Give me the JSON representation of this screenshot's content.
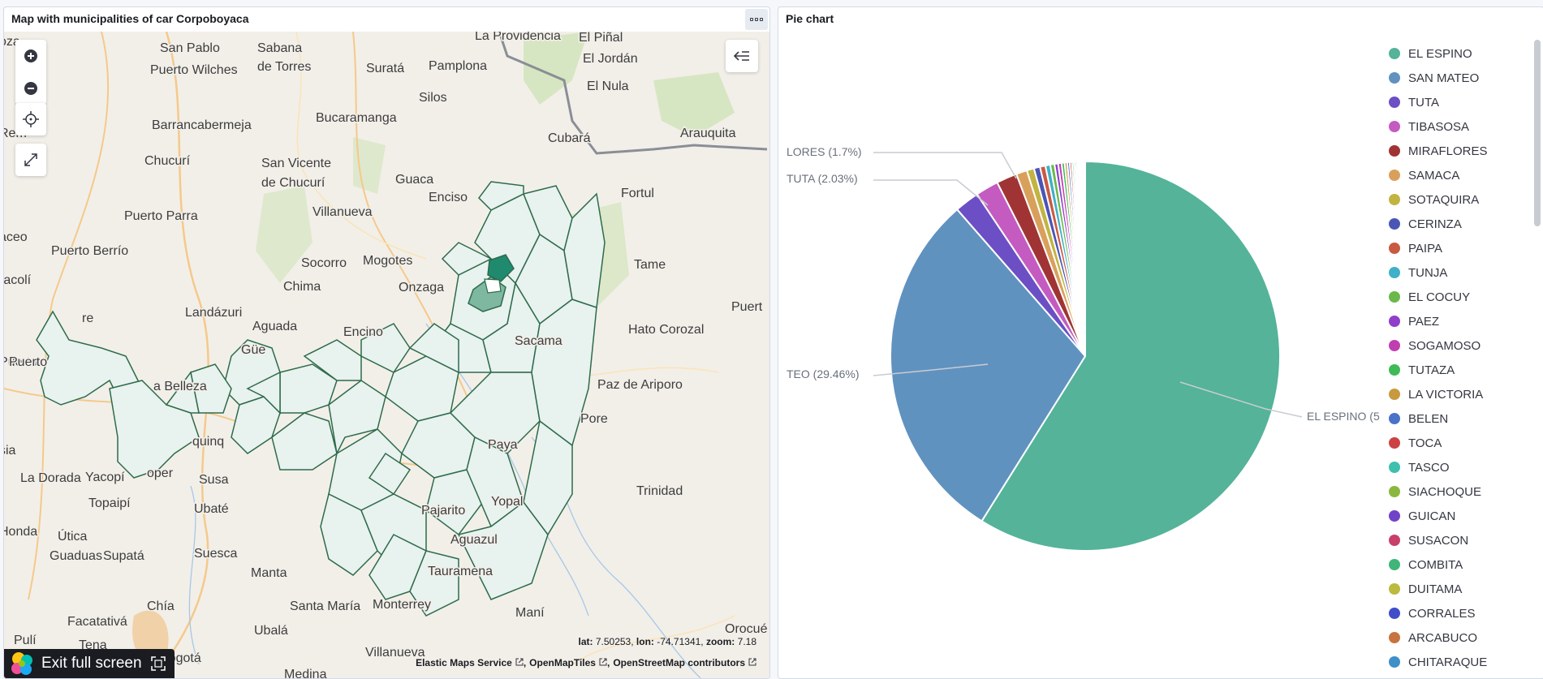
{
  "map_panel": {
    "title": "Map with municipalities of car Corpoboyaca",
    "coords": {
      "lat_label": "lat:",
      "lat": "7.50253",
      "lon_label": "lon:",
      "lon": "-74.71341",
      "zoom_label": "zoom:",
      "zoom": "7.18"
    },
    "attribution": [
      "Elastic Maps Service",
      "OpenMapTiles",
      "OpenStreetMap contributors"
    ],
    "exit_fullscreen": "Exit full screen",
    "places": [
      "San Pablo",
      "Sabana",
      "de Torres",
      "Puerto Wilches",
      "Suratá",
      "Pamplona",
      "La Providencia",
      "El Piñal",
      "El Jordán",
      "El Nula",
      "Silos",
      "Barrancabermeja",
      "Bucaramanga",
      "Cubará",
      "Arauquita",
      "Rem",
      "Chucurí",
      "San Vicente",
      "de Chucurí",
      "Guaca",
      "Fortul",
      "Enciso",
      "Villanueva",
      "Puerto Parra",
      "aceo",
      "Puerto Berrío",
      "Socorro",
      "Mogotes",
      "Tame",
      "racolí",
      "Chima",
      "Onzaga",
      "Landázuri",
      "Aguada",
      "Puert",
      "Hato Corozal",
      "Puerto",
      "re",
      "Encino",
      "Sacama",
      "Güe",
      "Puerto",
      "a Belleza",
      "Paz de Ariporo",
      "Pore",
      "quinq",
      "sia",
      "Paya",
      "La Dorada",
      "Yacopí",
      "oper",
      "Susa",
      "Trinidad",
      "Topaipí",
      "Ubaté",
      "Yopal",
      "Honda",
      "Pajarito",
      "Útica",
      "Aguazul",
      "Guaduas",
      "Supatá",
      "Suesca",
      "Manta",
      "Tauramena",
      "Chía",
      "Santa María",
      "Monterrey",
      "Maní",
      "Facatativá",
      "Orocué",
      "Pulí",
      "Tena",
      "Ubalá",
      "Bogotá",
      "Villanueva",
      "Medina",
      "oza"
    ]
  },
  "pie_panel": {
    "title": "Pie chart",
    "callouts": [
      "LORES (1.7%)",
      "TUTA (2.03%)",
      "TEO (29.46%)",
      "EL ESPINO (5"
    ]
  },
  "chart_data": {
    "type": "pie",
    "title": "Pie chart",
    "series": [
      {
        "name": "EL ESPINO",
        "value": 58.5,
        "color": "#54b399"
      },
      {
        "name": "SAN MATEO",
        "value": 29.46,
        "color": "#6092c0"
      },
      {
        "name": "TUTA",
        "value": 2.03,
        "color": "#6c4fc4"
      },
      {
        "name": "TIBASOSA",
        "value": 1.9,
        "color": "#c45bc1"
      },
      {
        "name": "MIRAFLORES",
        "value": 1.7,
        "color": "#a03434"
      },
      {
        "name": "SAMACA",
        "value": 0.9,
        "color": "#d9a05c"
      },
      {
        "name": "SOTAQUIRA",
        "value": 0.6,
        "color": "#c2b441"
      },
      {
        "name": "CERINZA",
        "value": 0.5,
        "color": "#4b55b5"
      },
      {
        "name": "PAIPA",
        "value": 0.45,
        "color": "#c85a42"
      },
      {
        "name": "TUNJA",
        "value": 0.4,
        "color": "#3fb0c7"
      },
      {
        "name": "EL COCUY",
        "value": 0.35,
        "color": "#6ab84b"
      },
      {
        "name": "PAEZ",
        "value": 0.3,
        "color": "#8f3fc9"
      },
      {
        "name": "SOGAMOSO",
        "value": 0.28,
        "color": "#c03fb0"
      },
      {
        "name": "TUTAZA",
        "value": 0.25,
        "color": "#3fba58"
      },
      {
        "name": "LA VICTORIA",
        "value": 0.22,
        "color": "#c89a3f"
      },
      {
        "name": "BELEN",
        "value": 0.2,
        "color": "#4a72c8"
      },
      {
        "name": "TOCA",
        "value": 0.18,
        "color": "#cc4242"
      },
      {
        "name": "TASCO",
        "value": 0.16,
        "color": "#3fbfae"
      },
      {
        "name": "SIACHOQUE",
        "value": 0.15,
        "color": "#8ab83f"
      },
      {
        "name": "GUICAN",
        "value": 0.14,
        "color": "#7043c8"
      },
      {
        "name": "SUSACON",
        "value": 0.13,
        "color": "#c83f6a"
      },
      {
        "name": "COMBITA",
        "value": 0.12,
        "color": "#3fb57a"
      },
      {
        "name": "DUITAMA",
        "value": 0.11,
        "color": "#bcba3f"
      },
      {
        "name": "CORRALES",
        "value": 0.1,
        "color": "#3f4ec8"
      },
      {
        "name": "ARCABUCO",
        "value": 0.09,
        "color": "#c8733f"
      },
      {
        "name": "CHITARAQUE",
        "value": 0.08,
        "color": "#3f8fc8"
      }
    ]
  }
}
